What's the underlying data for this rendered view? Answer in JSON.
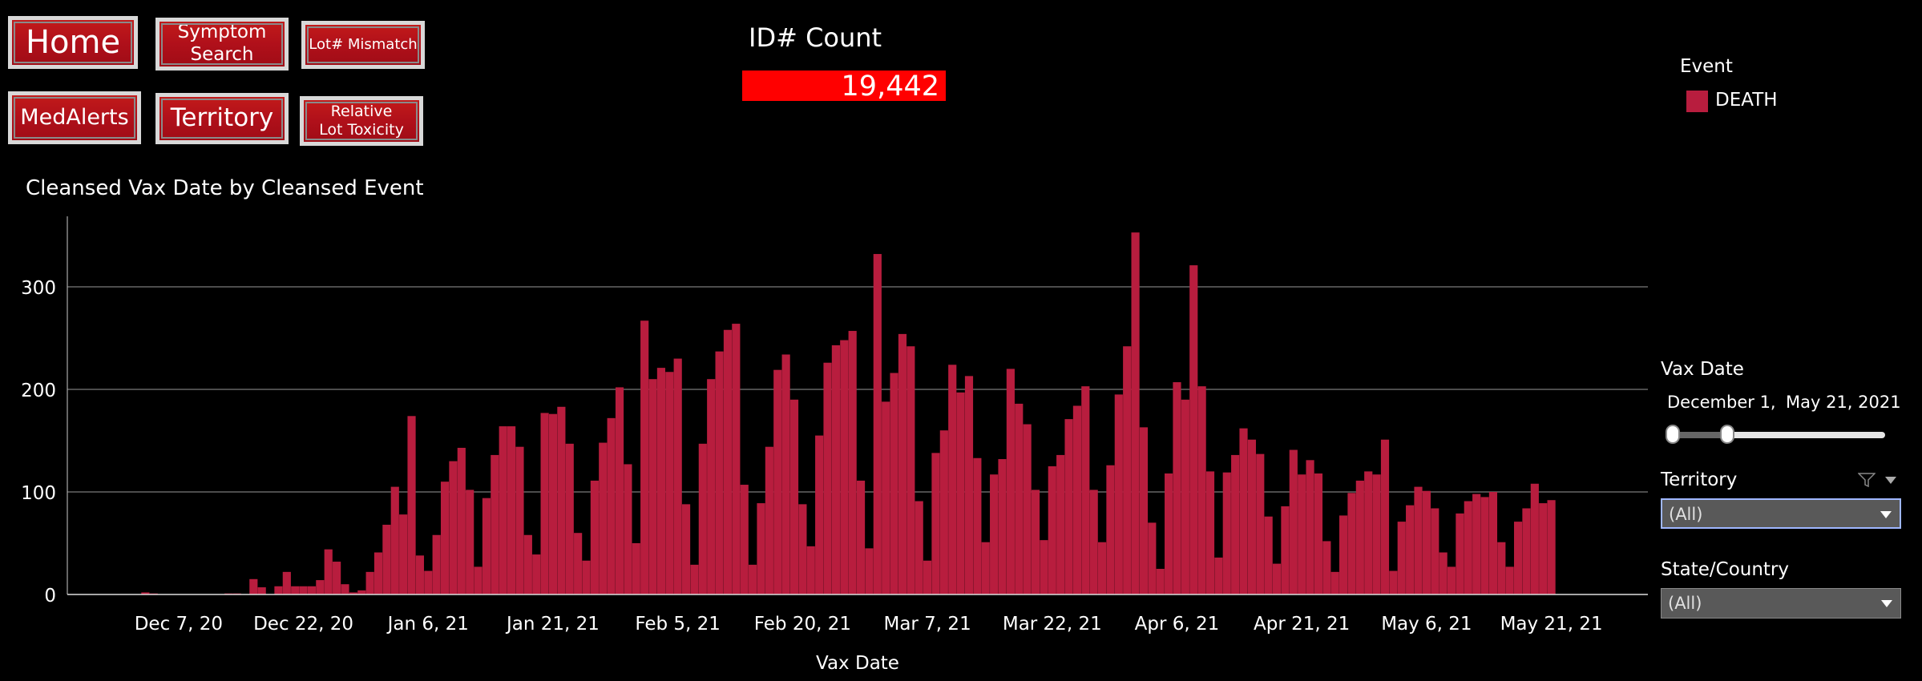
{
  "nav": {
    "home": "Home",
    "symptom_line1": "Symptom",
    "symptom_line2": "Search",
    "lot_mismatch": "Lot# Mismatch",
    "medalerts": "MedAlerts",
    "territory": "Territory",
    "reltox_line1": "Relative",
    "reltox_line2": "Lot Toxicity"
  },
  "kpi": {
    "title": "ID# Count",
    "value": "19,442",
    "color": "#ff0000"
  },
  "legend": {
    "title": "Event",
    "items": [
      {
        "label": "DEATH",
        "color": "#b81d3e"
      }
    ]
  },
  "controls": {
    "vax_date": {
      "title": "Vax Date",
      "start": "December 1, 2020",
      "end": "May 21, 2021"
    },
    "territory": {
      "title": "Territory",
      "value": "(All)",
      "icons": [
        "filter-icon",
        "menu-caret-icon"
      ]
    },
    "state": {
      "title": "State/Country",
      "value": "(All)"
    }
  },
  "chart_data": {
    "type": "bar",
    "title": "Cleansed Vax Date by Cleansed Event",
    "xlabel": "Vax Date",
    "ylabel": "",
    "ylim": [
      0,
      370
    ],
    "y_ticks": [
      0,
      100,
      200,
      300
    ],
    "x_tick_labels": [
      "Dec 7, 20",
      "Dec 22, 20",
      "Jan 6, 21",
      "Jan 21, 21",
      "Feb 5, 21",
      "Feb 20, 21",
      "Mar 7, 21",
      "Mar 22, 21",
      "Apr 6, 21",
      "Apr 21, 21",
      "May 6, 21",
      "May 21, 21"
    ],
    "grid": true,
    "bar_color": "#b81d3e",
    "series": [
      {
        "name": "DEATH",
        "start_date": "2020-11-27",
        "values": [
          0,
          0,
          0,
          0,
          0,
          0,
          2,
          1,
          0,
          0,
          0,
          0,
          0,
          0,
          0,
          0,
          1,
          1,
          0,
          15,
          7,
          0,
          8,
          22,
          8,
          8,
          8,
          14,
          44,
          32,
          10,
          2,
          4,
          22,
          41,
          68,
          105,
          78,
          174,
          38,
          23,
          58,
          110,
          130,
          143,
          102,
          27,
          94,
          136,
          164,
          164,
          144,
          58,
          39,
          177,
          176,
          183,
          147,
          60,
          33,
          111,
          148,
          172,
          202,
          127,
          50,
          267,
          210,
          221,
          217,
          230,
          88,
          29,
          147,
          210,
          237,
          258,
          264,
          107,
          29,
          89,
          144,
          219,
          234,
          190,
          88,
          47,
          155,
          226,
          243,
          248,
          257,
          111,
          45,
          332,
          188,
          216,
          254,
          242,
          91,
          33,
          138,
          160,
          224,
          197,
          213,
          133,
          51,
          117,
          132,
          220,
          186,
          166,
          102,
          53,
          125,
          136,
          171,
          184,
          203,
          102,
          51,
          126,
          195,
          242,
          353,
          163,
          70,
          25,
          118,
          207,
          190,
          321,
          203,
          120,
          36,
          119,
          136,
          162,
          151,
          137,
          76,
          30,
          86,
          141,
          117,
          131,
          118,
          52,
          22,
          77,
          99,
          111,
          120,
          117,
          151,
          23,
          71,
          87,
          105,
          101,
          84,
          41,
          27,
          79,
          91,
          98,
          95,
          100,
          51,
          27,
          71,
          84,
          108,
          89,
          92
        ]
      }
    ]
  }
}
